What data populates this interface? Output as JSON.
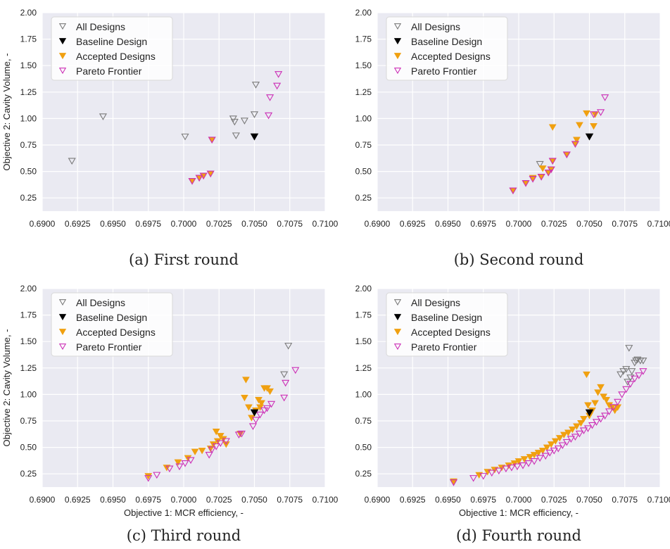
{
  "figure": {
    "colors": {
      "plot_background": "#eaeaf2",
      "grid": "#ffffff",
      "all_designs_stroke": "#7a7a7a",
      "baseline": "#000000",
      "accepted": "#f0a010",
      "pareto_stroke": "#cc2fb6",
      "pareto_fill": "#ffffff",
      "pareto_red_edge": "#cc2c5a",
      "legend_background": "#ffffff",
      "text": "#222222"
    },
    "shared_axis": {
      "xlim": [
        0.69,
        0.71
      ],
      "ylim": [
        0.125,
        2.0
      ],
      "x_ticks": [
        "0.6900",
        "0.6925",
        "0.6950",
        "0.6975",
        "0.7000",
        "0.7025",
        "0.7050",
        "0.7075",
        "0.7100"
      ],
      "y_ticks": [
        "0.25",
        "0.50",
        "0.75",
        "1.00",
        "1.25",
        "1.50",
        "1.75",
        "2.00"
      ]
    }
  },
  "chart_data": [
    {
      "type": "scatter",
      "caption": "(a) First round",
      "xlabel": "",
      "ylabel": "Objective 2: Cavity Volume, -",
      "xlim": [
        0.69,
        0.71
      ],
      "ylim": [
        0.125,
        2.0
      ],
      "grid": true,
      "legend_position": "top-left",
      "legend": [
        "All Designs",
        "Baseline Design",
        "Accepted Designs",
        "Pareto Frontier"
      ],
      "series": [
        {
          "name": "All Designs",
          "marker": "hollow-down-triangle",
          "x": [
            0.6921,
            0.6943,
            0.7001,
            0.7035,
            0.7036,
            0.7037,
            0.7043,
            0.705,
            0.7051
          ],
          "y": [
            0.6,
            1.02,
            0.83,
            1.0,
            0.97,
            0.84,
            0.98,
            1.04,
            1.32
          ]
        },
        {
          "name": "Baseline Design",
          "marker": "filled-down-triangle",
          "x": [
            0.705
          ],
          "y": [
            0.83
          ]
        },
        {
          "name": "Accepted Designs",
          "marker": "filled-down-triangle",
          "x": [
            0.7006,
            0.7011,
            0.7014,
            0.7019,
            0.702
          ],
          "y": [
            0.41,
            0.44,
            0.46,
            0.48,
            0.8
          ]
        },
        {
          "name": "Pareto Frontier",
          "marker": "hollow-down-triangle",
          "x": [
            0.7006,
            0.7011,
            0.7014,
            0.7019,
            0.702,
            0.706,
            0.7061,
            0.7066,
            0.7067
          ],
          "y": [
            0.41,
            0.44,
            0.46,
            0.48,
            0.8,
            1.03,
            1.2,
            1.31,
            1.42
          ]
        }
      ]
    },
    {
      "type": "scatter",
      "caption": "(b) Second round",
      "xlabel": "",
      "ylabel": "",
      "xlim": [
        0.69,
        0.71
      ],
      "ylim": [
        0.125,
        2.0
      ],
      "grid": true,
      "legend_position": "top-left",
      "legend": [
        "All Designs",
        "Baseline Design",
        "Accepted Designs",
        "Pareto Frontier"
      ],
      "series": [
        {
          "name": "All Designs",
          "marker": "hollow-down-triangle",
          "x": [
            0.7015
          ],
          "y": [
            0.57
          ]
        },
        {
          "name": "Baseline Design",
          "marker": "filled-down-triangle",
          "x": [
            0.705
          ],
          "y": [
            0.83
          ]
        },
        {
          "name": "Accepted Designs",
          "marker": "filled-down-triangle",
          "x": [
            0.6996,
            0.7005,
            0.701,
            0.7016,
            0.7017,
            0.7021,
            0.7023,
            0.7024,
            0.7024,
            0.7034,
            0.704,
            0.7041,
            0.7043,
            0.7048,
            0.7053,
            0.7054
          ],
          "y": [
            0.32,
            0.39,
            0.44,
            0.45,
            0.53,
            0.49,
            0.52,
            0.6,
            0.92,
            0.66,
            0.76,
            0.8,
            0.94,
            1.05,
            0.93,
            1.04
          ]
        },
        {
          "name": "Pareto Frontier",
          "marker": "hollow-down-triangle",
          "x": [
            0.6996,
            0.7005,
            0.701,
            0.7016,
            0.7021,
            0.7023,
            0.7024,
            0.7034,
            0.704,
            0.7053,
            0.7058,
            0.7061
          ],
          "y": [
            0.32,
            0.39,
            0.43,
            0.45,
            0.49,
            0.52,
            0.6,
            0.66,
            0.76,
            1.04,
            1.06,
            1.2
          ]
        }
      ]
    },
    {
      "type": "scatter",
      "caption": "(c) Third round",
      "xlabel": "Objective 1: MCR efficiency, -",
      "ylabel": "Objective 2: Cavity Volume, -",
      "xlim": [
        0.69,
        0.71
      ],
      "ylim": [
        0.125,
        2.0
      ],
      "grid": true,
      "legend_position": "top-left",
      "legend": [
        "All Designs",
        "Baseline Design",
        "Accepted Designs",
        "Pareto Frontier"
      ],
      "series": [
        {
          "name": "All Designs",
          "marker": "hollow-down-triangle",
          "x": [
            0.7071,
            0.7074
          ],
          "y": [
            1.19,
            1.46
          ]
        },
        {
          "name": "Baseline Design",
          "marker": "filled-down-triangle",
          "x": [
            0.705
          ],
          "y": [
            0.83
          ]
        },
        {
          "name": "Accepted Designs",
          "marker": "filled-down-triangle",
          "x": [
            0.6975,
            0.6988,
            0.6996,
            0.7003,
            0.7008,
            0.7013,
            0.7019,
            0.7021,
            0.7023,
            0.7024,
            0.7026,
            0.7028,
            0.703,
            0.704,
            0.7043,
            0.7044,
            0.7046,
            0.7048,
            0.7051,
            0.7053,
            0.7054,
            0.7055,
            0.7057,
            0.7059,
            0.7061
          ],
          "y": [
            0.23,
            0.31,
            0.36,
            0.4,
            0.46,
            0.47,
            0.49,
            0.53,
            0.65,
            0.56,
            0.61,
            0.58,
            0.53,
            0.63,
            0.97,
            1.14,
            0.88,
            0.78,
            0.85,
            0.95,
            0.88,
            0.92,
            1.06,
            1.06,
            1.03
          ]
        },
        {
          "name": "Pareto Frontier",
          "marker": "hollow-down-triangle",
          "x": [
            0.6975,
            0.6981,
            0.699,
            0.6997,
            0.7001,
            0.7005,
            0.7018,
            0.702,
            0.7023,
            0.7026,
            0.703,
            0.7039,
            0.7041,
            0.7049,
            0.7051,
            0.7054,
            0.7057,
            0.7059,
            0.7062,
            0.7071,
            0.7072,
            0.7079
          ],
          "y": [
            0.21,
            0.24,
            0.3,
            0.32,
            0.35,
            0.38,
            0.43,
            0.48,
            0.51,
            0.54,
            0.56,
            0.62,
            0.63,
            0.7,
            0.76,
            0.81,
            0.85,
            0.87,
            0.91,
            0.97,
            1.11,
            1.23
          ]
        }
      ]
    },
    {
      "type": "scatter",
      "caption": "(d) Fourth round",
      "xlabel": "Objective 1: MCR efficiency, -",
      "ylabel": "",
      "xlim": [
        0.69,
        0.71
      ],
      "ylim": [
        0.125,
        2.0
      ],
      "grid": true,
      "legend_position": "top-left",
      "legend": [
        "All Designs",
        "Baseline Design",
        "Accepted Designs",
        "Pareto Frontier"
      ],
      "series": [
        {
          "name": "All Designs",
          "marker": "hollow-down-triangle",
          "x": [
            0.7072,
            0.7074,
            0.7076,
            0.7077,
            0.7078,
            0.7079,
            0.708,
            0.7082,
            0.7083,
            0.7084,
            0.7086,
            0.7088
          ],
          "y": [
            1.19,
            1.22,
            1.24,
            1.12,
            1.44,
            1.16,
            1.22,
            1.3,
            1.32,
            1.33,
            1.32,
            1.32
          ]
        },
        {
          "name": "Baseline Design",
          "marker": "filled-down-triangle",
          "x": [
            0.705
          ],
          "y": [
            0.83
          ]
        },
        {
          "name": "Accepted Designs",
          "marker": "filled-down-triangle",
          "x": [
            0.6954,
            0.6972,
            0.6978,
            0.6983,
            0.6988,
            0.6993,
            0.6997,
            0.7,
            0.7004,
            0.7008,
            0.7011,
            0.7014,
            0.7017,
            0.702,
            0.7023,
            0.7026,
            0.7029,
            0.7032,
            0.7035,
            0.7038,
            0.7041,
            0.7044,
            0.7046,
            0.7048,
            0.7049,
            0.705,
            0.7052,
            0.7054,
            0.7056,
            0.7058,
            0.706,
            0.7062,
            0.7064,
            0.7066,
            0.7068,
            0.707
          ],
          "y": [
            0.18,
            0.24,
            0.27,
            0.29,
            0.31,
            0.33,
            0.35,
            0.37,
            0.39,
            0.41,
            0.43,
            0.45,
            0.47,
            0.5,
            0.53,
            0.56,
            0.59,
            0.62,
            0.64,
            0.67,
            0.7,
            0.73,
            0.77,
            1.19,
            0.9,
            0.8,
            0.85,
            0.92,
            1.02,
            1.07,
            0.98,
            0.95,
            0.9,
            0.88,
            0.85,
            0.88
          ]
        },
        {
          "name": "Pareto Frontier",
          "marker": "hollow-down-triangle",
          "x": [
            0.6954,
            0.6968,
            0.6975,
            0.6981,
            0.6986,
            0.6991,
            0.6995,
            0.6999,
            0.7003,
            0.7007,
            0.7011,
            0.7015,
            0.7019,
            0.7022,
            0.7025,
            0.7028,
            0.7031,
            0.7034,
            0.7037,
            0.704,
            0.7043,
            0.7046,
            0.7049,
            0.7052,
            0.7055,
            0.7058,
            0.7061,
            0.7064,
            0.7067,
            0.707,
            0.7073,
            0.7076,
            0.7079,
            0.7082,
            0.7085,
            0.7088
          ],
          "y": [
            0.17,
            0.21,
            0.23,
            0.26,
            0.28,
            0.3,
            0.31,
            0.32,
            0.33,
            0.35,
            0.37,
            0.4,
            0.42,
            0.45,
            0.47,
            0.49,
            0.52,
            0.55,
            0.58,
            0.6,
            0.63,
            0.66,
            0.68,
            0.71,
            0.74,
            0.77,
            0.8,
            0.84,
            0.88,
            0.93,
            1.0,
            1.05,
            1.1,
            1.15,
            1.18,
            1.22
          ]
        }
      ]
    }
  ]
}
